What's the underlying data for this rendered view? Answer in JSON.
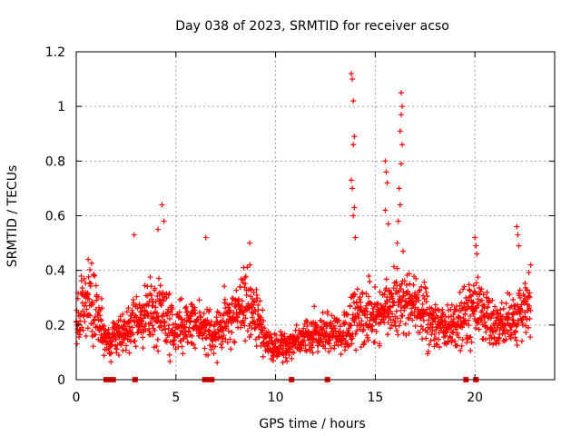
{
  "colors": {
    "series": "#ff0000",
    "grid": "#a0a0a0",
    "axis": "#000000"
  },
  "chart_data": {
    "type": "scatter",
    "title": "Day 038 of 2023, SRMTID for receiver acso",
    "xlabel": "GPS time / hours",
    "ylabel": "SRMTID / TECUs",
    "xlim": [
      0,
      24
    ],
    "ylim": [
      0,
      1.2
    ],
    "xticks": [
      0,
      5,
      10,
      15,
      20
    ],
    "xtick_labels": [
      "0",
      "5",
      "10",
      "15",
      "20"
    ],
    "yticks": [
      0,
      0.2,
      0.4,
      0.6,
      0.8,
      1.0,
      1.2
    ],
    "ytick_labels": [
      "0",
      "0.2",
      "0.4",
      "0.6",
      "0.8",
      "1",
      "1.2"
    ],
    "grid": true,
    "marker": "plus",
    "envelope": {
      "x": [
        0.0,
        0.5,
        1.0,
        1.5,
        2.0,
        2.5,
        3.0,
        3.5,
        4.0,
        4.5,
        5.0,
        5.5,
        6.0,
        6.5,
        7.0,
        7.5,
        8.0,
        8.5,
        9.0,
        9.5,
        10.0,
        10.5,
        11.0,
        11.5,
        12.0,
        12.5,
        13.0,
        13.5,
        14.0,
        14.5,
        15.0,
        15.5,
        16.0,
        16.5,
        17.0,
        17.5,
        18.0,
        18.5,
        19.0,
        19.5,
        20.0,
        20.5,
        21.0,
        21.5,
        22.0,
        22.5,
        22.8
      ],
      "center": [
        0.2,
        0.28,
        0.26,
        0.14,
        0.16,
        0.17,
        0.22,
        0.24,
        0.26,
        0.22,
        0.18,
        0.19,
        0.2,
        0.19,
        0.17,
        0.22,
        0.25,
        0.28,
        0.24,
        0.15,
        0.12,
        0.12,
        0.14,
        0.16,
        0.17,
        0.17,
        0.17,
        0.18,
        0.22,
        0.24,
        0.22,
        0.24,
        0.3,
        0.28,
        0.26,
        0.24,
        0.2,
        0.19,
        0.2,
        0.25,
        0.26,
        0.24,
        0.2,
        0.22,
        0.22,
        0.24,
        0.28
      ],
      "spread": [
        0.08,
        0.12,
        0.12,
        0.06,
        0.07,
        0.07,
        0.09,
        0.1,
        0.12,
        0.1,
        0.08,
        0.08,
        0.08,
        0.08,
        0.07,
        0.08,
        0.1,
        0.11,
        0.1,
        0.06,
        0.05,
        0.05,
        0.05,
        0.06,
        0.06,
        0.06,
        0.06,
        0.07,
        0.1,
        0.1,
        0.09,
        0.1,
        0.12,
        0.12,
        0.1,
        0.1,
        0.08,
        0.07,
        0.08,
        0.1,
        0.1,
        0.1,
        0.08,
        0.08,
        0.08,
        0.1,
        0.1
      ]
    },
    "peaks": [
      {
        "x": 0.6,
        "y": 0.44
      },
      {
        "x": 2.9,
        "y": 0.53
      },
      {
        "x": 4.1,
        "y": 0.55
      },
      {
        "x": 4.3,
        "y": 0.64
      },
      {
        "x": 4.4,
        "y": 0.58
      },
      {
        "x": 6.5,
        "y": 0.52
      },
      {
        "x": 8.7,
        "y": 0.5
      },
      {
        "x": 8.4,
        "y": 0.41
      },
      {
        "x": 13.8,
        "y": 1.12
      },
      {
        "x": 13.85,
        "y": 1.1
      },
      {
        "x": 13.9,
        "y": 1.02
      },
      {
        "x": 13.95,
        "y": 0.89
      },
      {
        "x": 13.9,
        "y": 0.86
      },
      {
        "x": 13.8,
        "y": 0.73
      },
      {
        "x": 13.85,
        "y": 0.7
      },
      {
        "x": 13.95,
        "y": 0.63
      },
      {
        "x": 13.9,
        "y": 0.6
      },
      {
        "x": 14.0,
        "y": 0.52
      },
      {
        "x": 15.5,
        "y": 0.8
      },
      {
        "x": 15.55,
        "y": 0.76
      },
      {
        "x": 15.6,
        "y": 0.72
      },
      {
        "x": 15.5,
        "y": 0.62
      },
      {
        "x": 15.65,
        "y": 0.57
      },
      {
        "x": 16.3,
        "y": 1.05
      },
      {
        "x": 16.35,
        "y": 1.0
      },
      {
        "x": 16.3,
        "y": 0.97
      },
      {
        "x": 16.25,
        "y": 0.91
      },
      {
        "x": 16.35,
        "y": 0.86
      },
      {
        "x": 16.3,
        "y": 0.79
      },
      {
        "x": 16.2,
        "y": 0.7
      },
      {
        "x": 16.25,
        "y": 0.64
      },
      {
        "x": 16.15,
        "y": 0.58
      },
      {
        "x": 16.1,
        "y": 0.5
      },
      {
        "x": 16.4,
        "y": 0.47
      },
      {
        "x": 20.0,
        "y": 0.52
      },
      {
        "x": 20.05,
        "y": 0.49
      },
      {
        "x": 20.1,
        "y": 0.46
      },
      {
        "x": 22.1,
        "y": 0.56
      },
      {
        "x": 22.15,
        "y": 0.53
      },
      {
        "x": 22.2,
        "y": 0.49
      },
      {
        "x": 22.8,
        "y": 0.42
      }
    ],
    "zero_points": [
      1.5,
      1.6,
      1.85,
      2.95,
      6.45,
      6.7,
      6.8,
      10.8,
      12.6,
      19.55,
      20.05
    ]
  }
}
